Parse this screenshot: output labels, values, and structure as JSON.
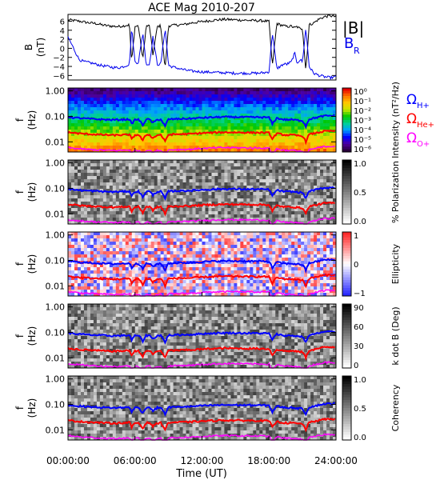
{
  "title": "ACE Mag 2010-207",
  "x_axis": {
    "label": "Time (UT)",
    "ticks": [
      "00:00:00",
      "06:00:00",
      "12:00:00",
      "18:00:00",
      "24:00:00"
    ],
    "tick_hours": [
      0,
      6,
      12,
      18,
      24
    ]
  },
  "colors": {
    "bmag": "#000000",
    "br": "#0000ee",
    "h_plus": "#0000ff",
    "he_plus": "#ff0000",
    "o_plus": "#ff00ff"
  },
  "chart_data": [
    {
      "type": "line",
      "panel": "magnetic-field",
      "ylabel": [
        "B",
        "(nT)"
      ],
      "ylim": [
        -7,
        7.5
      ],
      "yticks": [
        -6,
        -4,
        -2,
        0,
        2,
        4,
        6
      ],
      "series": [
        {
          "name": "|B|",
          "color_key": "bmag",
          "x": [
            0,
            1,
            1.5,
            2,
            2.5,
            3,
            3.5,
            4,
            4.5,
            5,
            5.5,
            5.7,
            6,
            6.3,
            6.7,
            7,
            7.3,
            7.6,
            8,
            8.3,
            8.7,
            9,
            9.5,
            10,
            10.5,
            11,
            12,
            13,
            14,
            15,
            16,
            17,
            17.5,
            18,
            18.3,
            18.7,
            19,
            19.3,
            19.6,
            20,
            20.3,
            20.5,
            20.8,
            21,
            21.3,
            21.6,
            22,
            22.5,
            23,
            23.5,
            24
          ],
          "y": [
            6.3,
            6.0,
            5.8,
            5.6,
            5.5,
            5.2,
            5.0,
            4.9,
            4.8,
            5.0,
            5.2,
            -3.0,
            4.8,
            5.0,
            -2.5,
            4.9,
            5.0,
            -1.5,
            4.8,
            5.0,
            -4.5,
            5.0,
            5.1,
            5.2,
            5.3,
            5.6,
            5.9,
            6.2,
            6.4,
            6.3,
            6.2,
            6.1,
            6.1,
            5.9,
            -4.0,
            5.5,
            5.2,
            5.0,
            4.8,
            4.9,
            4.5,
            4.8,
            4.3,
            4.5,
            -5.0,
            5.2,
            5.6,
            6.5,
            7.0,
            7.2,
            7.0
          ]
        },
        {
          "name": "B_R",
          "color_key": "br",
          "x": [
            0,
            1,
            1.5,
            2,
            2.5,
            3,
            3.5,
            4,
            4.5,
            5,
            5.5,
            5.7,
            6,
            6.3,
            6.7,
            7,
            7.3,
            7.6,
            8,
            8.3,
            8.7,
            9,
            9.5,
            10,
            10.5,
            11,
            12,
            13,
            14,
            15,
            16,
            17,
            17.5,
            18,
            18.3,
            18.7,
            19,
            19.3,
            19.6,
            20,
            20.3,
            20.5,
            20.8,
            21,
            21.3,
            21.6,
            22,
            22.5,
            23,
            23.5,
            24
          ],
          "y": [
            2.5,
            -2.5,
            -3.0,
            -3.2,
            -3.5,
            -3.8,
            -4.0,
            -4.2,
            -4.3,
            -4.0,
            -3.5,
            4.5,
            -3.0,
            -3.2,
            3.5,
            -3.5,
            -3.6,
            2.5,
            -3.5,
            -3.6,
            4.5,
            -3.8,
            -4.2,
            -4.5,
            -4.8,
            -5.0,
            -5.2,
            -5.3,
            -5.4,
            -5.5,
            -5.5,
            -5.5,
            -5.4,
            -5.2,
            3.5,
            -4.5,
            -4.0,
            -3.5,
            -3.5,
            -3.0,
            -1.0,
            -3.2,
            -2.5,
            -3.0,
            4.5,
            -4.0,
            -5.5,
            -6.0,
            -6.3,
            -6.5,
            -6.3
          ]
        }
      ]
    },
    {
      "type": "heatmap",
      "panel": "intensity",
      "ylabel": [
        "f",
        "(Hz)"
      ],
      "y_scale": "log",
      "yticks": [
        "1.00",
        "0.10",
        "0.01"
      ],
      "colorbar": {
        "label": "Intensity (nT²/Hz)",
        "ticks": [
          "10⁰",
          "10⁻¹",
          "10⁻²",
          "10⁻³",
          "10⁻⁴",
          "10⁻⁵",
          "10⁻⁶"
        ],
        "colormap": "rainbow"
      }
    },
    {
      "type": "heatmap",
      "panel": "polarization",
      "ylabel": [
        "f",
        "(Hz)"
      ],
      "y_scale": "log",
      "yticks": [
        "1.00",
        "0.10",
        "0.01"
      ],
      "colorbar": {
        "label": "% Polarization",
        "ticks": [
          "1.0",
          "0.5",
          "0.0"
        ],
        "colormap": "gray"
      }
    },
    {
      "type": "heatmap",
      "panel": "ellipticity",
      "ylabel": [
        "f",
        "(Hz)"
      ],
      "y_scale": "log",
      "yticks": [
        "1.00",
        "0.10",
        "0.01"
      ],
      "colorbar": {
        "label": "Ellipticity",
        "ticks": [
          "1",
          "0",
          "−1"
        ],
        "colormap": "blue-white-red"
      }
    },
    {
      "type": "heatmap",
      "panel": "wave-normal-angle",
      "ylabel": [
        "f",
        "(Hz)"
      ],
      "y_scale": "log",
      "yticks": [
        "1.00",
        "0.10",
        "0.01"
      ],
      "colorbar": {
        "label": "k dot B (Deg)",
        "ticks": [
          "90",
          "60",
          "30",
          "0"
        ],
        "colormap": "gray"
      }
    },
    {
      "type": "heatmap",
      "panel": "coherency",
      "ylabel": [
        "f",
        "(Hz)"
      ],
      "y_scale": "log",
      "yticks": [
        "1.00",
        "0.10",
        "0.01"
      ],
      "colorbar": {
        "label": "Coherency",
        "ticks": [
          "1.0",
          "0.5",
          "0.0"
        ],
        "colormap": "gray"
      }
    }
  ],
  "gyrofrequency_lines": {
    "hours": [
      0,
      1,
      2,
      3,
      4,
      5,
      5.5,
      5.7,
      6,
      6.3,
      6.7,
      7,
      7.3,
      7.6,
      8,
      8.3,
      8.7,
      9,
      10,
      11,
      12,
      13,
      14,
      15,
      16,
      17,
      17.5,
      18,
      18.3,
      18.7,
      19,
      19.3,
      19.6,
      20,
      20.5,
      21,
      21.3,
      21.6,
      22,
      23,
      24
    ],
    "h_plus_hz": [
      0.095,
      0.085,
      0.08,
      0.076,
      0.073,
      0.075,
      0.078,
      0.05,
      0.074,
      0.076,
      0.045,
      0.075,
      0.076,
      0.055,
      0.074,
      0.076,
      0.04,
      0.077,
      0.08,
      0.082,
      0.088,
      0.092,
      0.095,
      0.094,
      0.093,
      0.092,
      0.092,
      0.09,
      0.05,
      0.085,
      0.08,
      0.076,
      0.074,
      0.075,
      0.071,
      0.068,
      0.04,
      0.078,
      0.085,
      0.105,
      0.108
    ]
  },
  "legend": [
    {
      "label": "|B|",
      "color_key": "bmag"
    },
    {
      "label": "B",
      "sub": "R",
      "color_key": "br"
    },
    {
      "label": "Ω",
      "sub": "H+",
      "color_key": "h_plus"
    },
    {
      "label": "Ω",
      "sub": "He+",
      "color_key": "he_plus"
    },
    {
      "label": "Ω",
      "sub": "O+",
      "color_key": "o_plus"
    }
  ]
}
